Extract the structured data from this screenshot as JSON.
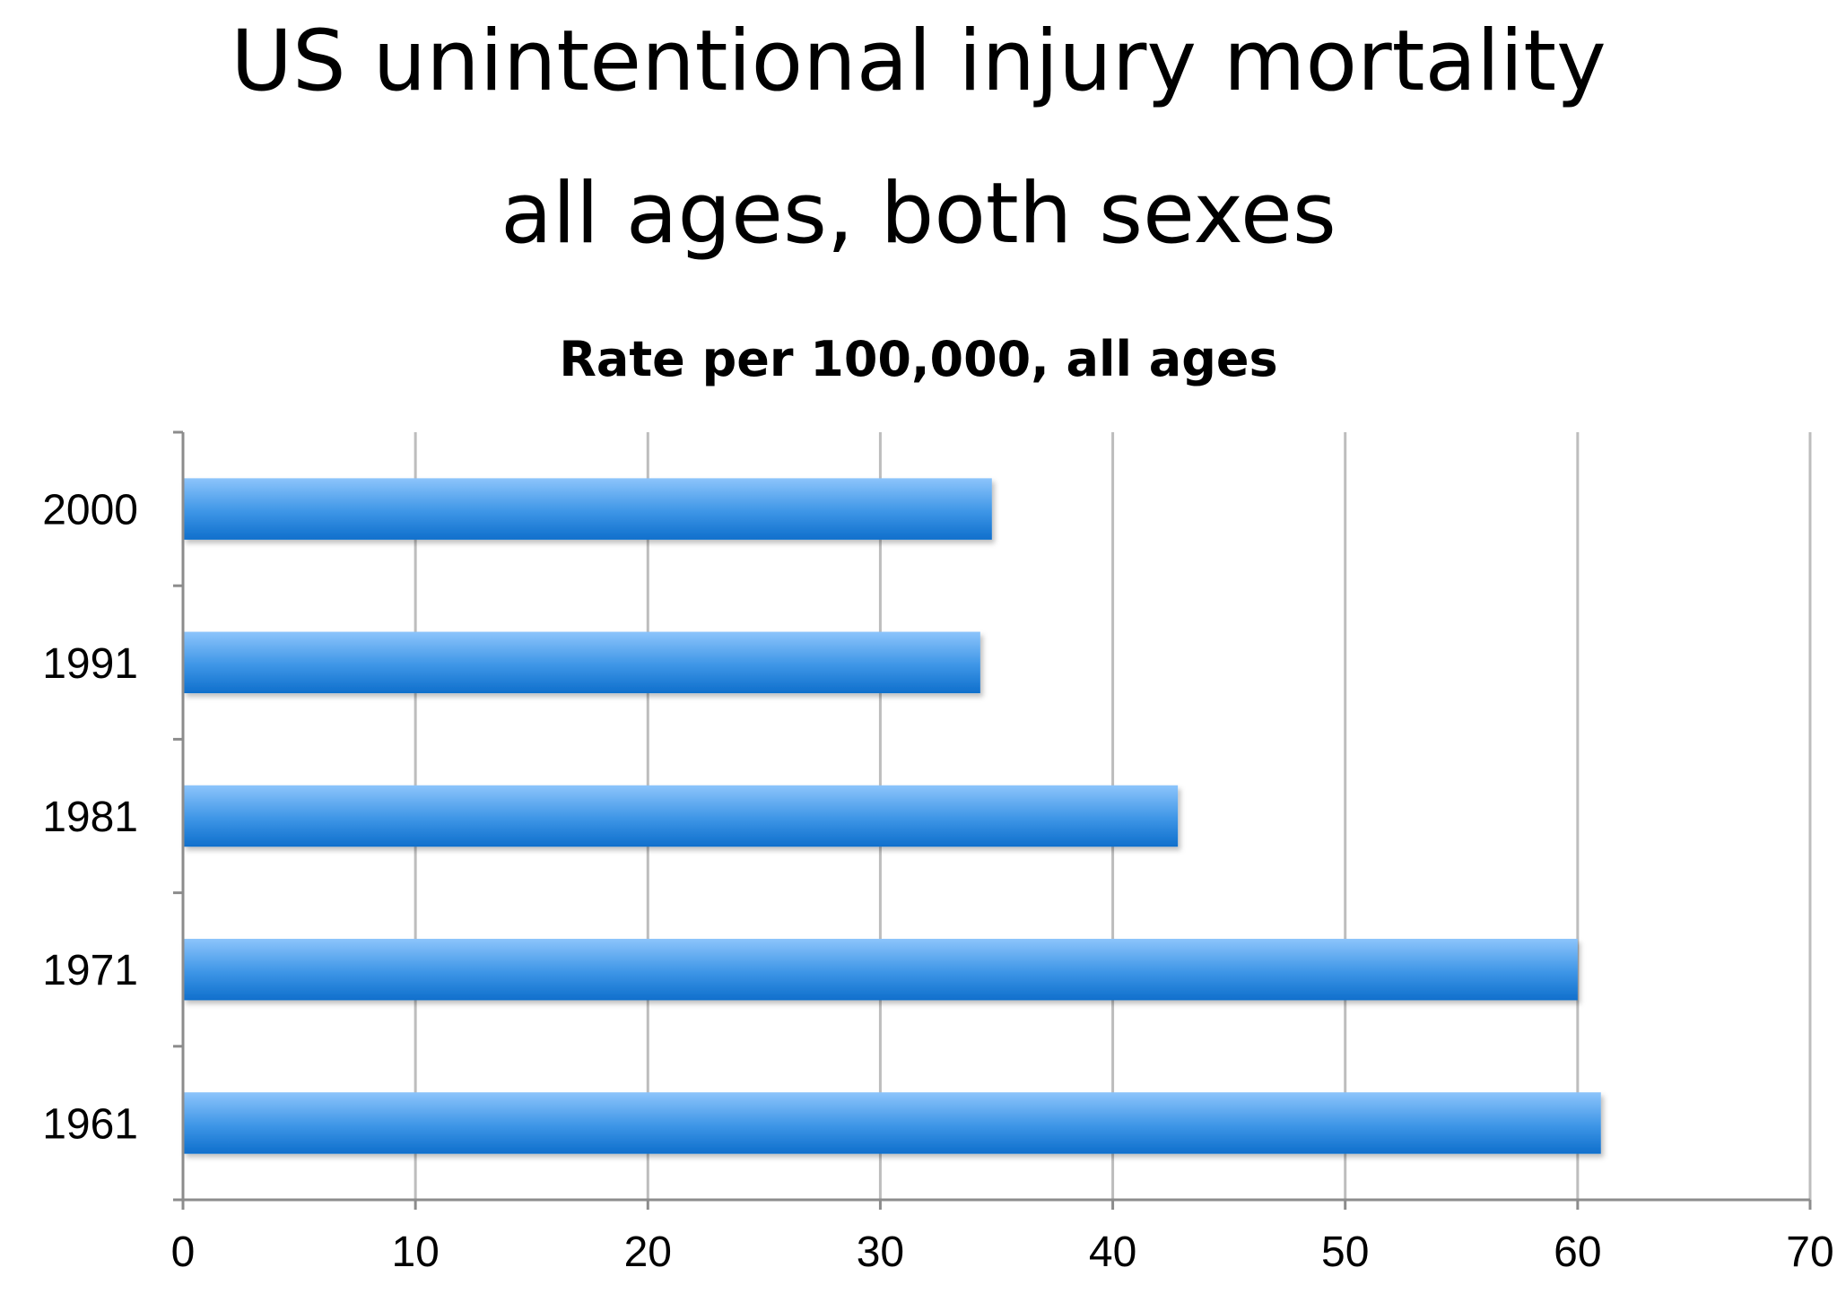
{
  "slide": {
    "title_line1": "US unintentional injury mortality",
    "title_line2": "all ages, both sexes"
  },
  "chart_data": {
    "type": "bar",
    "orientation": "horizontal",
    "title": "Rate per 100,000, all ages",
    "categories": [
      "1961",
      "1971",
      "1981",
      "1991",
      "2000"
    ],
    "values": [
      61,
      60,
      42.8,
      34.3,
      34.8
    ],
    "xlim": [
      0,
      70
    ],
    "xticks": [
      0,
      10,
      20,
      30,
      40,
      50,
      60,
      70
    ],
    "xlabel": "",
    "ylabel": "",
    "grid": "vertical",
    "legend": "none",
    "bar_color": "#3d95e6",
    "bar_color_light": "#8cc4fb",
    "bar_color_dark": "#0f6fcc"
  }
}
